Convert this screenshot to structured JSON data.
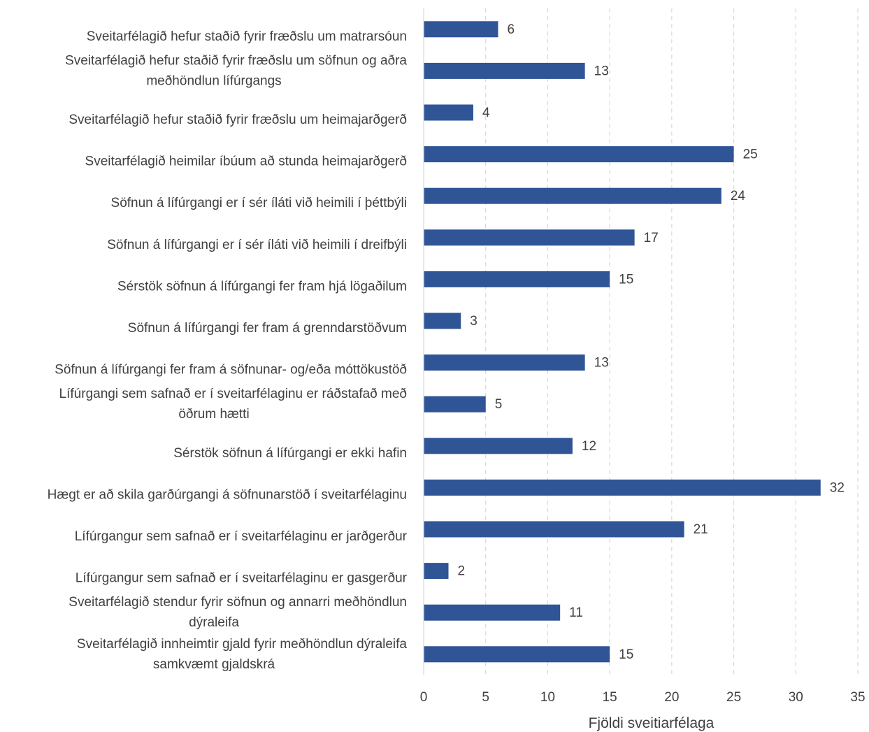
{
  "chart_data": {
    "type": "bar",
    "orientation": "horizontal",
    "categories": [
      [
        "Sveitarfélagið hefur staðið fyrir fræðslu um matrarsóun"
      ],
      [
        "Sveitarfélagið hefur staðið fyrir fræðslu um söfnun og aðra",
        "meðhöndlun lífúrgangs"
      ],
      [
        "Sveitarfélagið hefur staðið fyrir fræðslu um heimajarðgerð"
      ],
      [
        "Sveitarfélagið heimilar íbúum að stunda heimajarðgerð"
      ],
      [
        "Söfnun á lífúrgangi er í sér íláti við heimili í þéttbýli"
      ],
      [
        "Söfnun á lífúrgangi er í sér íláti við heimili í dreifbýli"
      ],
      [
        "Sérstök söfnun á lífúrgangi fer fram hjá lögaðilum"
      ],
      [
        "Söfnun á lífúrgangi fer fram á grenndarstöðvum"
      ],
      [
        "Söfnun á lífúrgangi fer fram á söfnunar- og/eða móttökustöð"
      ],
      [
        "Lífúrgangi sem safnað er í sveitarfélaginu er ráðstafað með",
        "öðrum hætti"
      ],
      [
        "Sérstök söfnun á lífúrgangi er ekki hafin"
      ],
      [
        "Hægt er að skila garðúrgangi á söfnunarstöð í sveitarfélaginu"
      ],
      [
        "Lífúrgangur sem safnað er í sveitarfélaginu er jarðgerður"
      ],
      [
        "Lífúrgangur sem safnað er í sveitarfélaginu er gasgerður"
      ],
      [
        "Sveitarfélagið stendur fyrir söfnun og annarri meðhöndlun",
        "dýraleifa"
      ],
      [
        "Sveitarfélagið innheimtir gjald fyrir meðhöndlun dýraleifa",
        "samkvæmt gjaldskrá"
      ]
    ],
    "values": [
      6,
      13,
      4,
      25,
      24,
      17,
      15,
      3,
      13,
      5,
      12,
      32,
      21,
      2,
      11,
      15
    ],
    "xlabel": "Fjöldi sveitiarfélaga",
    "xlim": [
      0,
      35
    ],
    "xticks": [
      0,
      5,
      10,
      15,
      20,
      25,
      30,
      35
    ],
    "grid": "vertical dashed",
    "legend": "none",
    "bar_color": "#2F5597",
    "grid_color": "#D9D9D9",
    "text_color": "#404040"
  }
}
